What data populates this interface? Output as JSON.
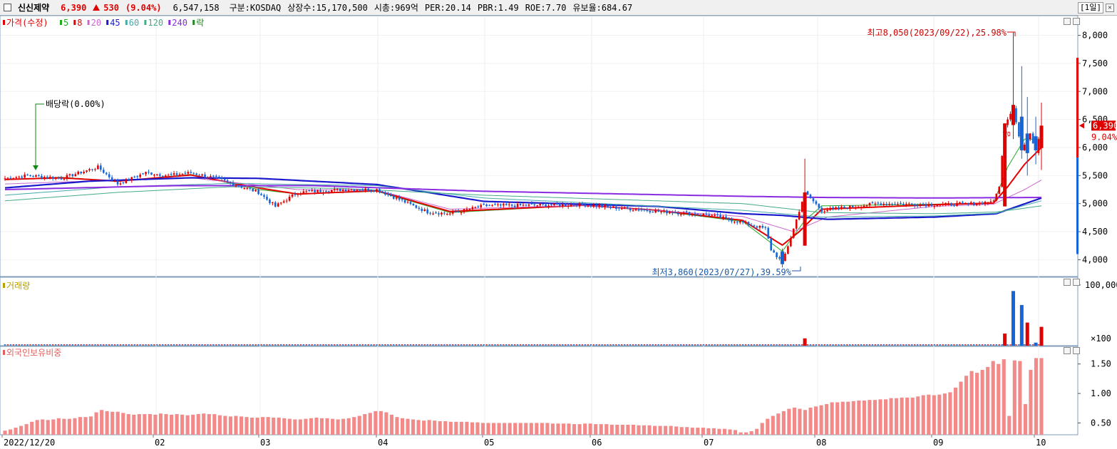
{
  "header": {
    "name": "신신제약",
    "price": "6,390",
    "change": "530",
    "change_pct": "(9.04%)",
    "volume": "6,547,158",
    "market": "구분:KOSDAQ",
    "shares": "상장수:15,170,500",
    "mktcap": "시총:969억",
    "per": "PER:20.14",
    "pbr": "PBR:1.49",
    "roe": "ROE:7.70",
    "float": "유보율:684.67",
    "period": "[1일]"
  },
  "legend": {
    "price_label": "가격(수정)",
    "ma": [
      {
        "label": "5",
        "color": "#22aa22"
      },
      {
        "label": "8",
        "color": "#e60000"
      },
      {
        "label": "20",
        "color": "#cc66cc"
      },
      {
        "label": "45",
        "color": "#1a1acc"
      },
      {
        "label": "60",
        "color": "#44aaaa"
      },
      {
        "label": "120",
        "color": "#44aa88"
      },
      {
        "label": "240",
        "color": "#8a2be2"
      }
    ],
    "ex_label": "락",
    "volume_label": "거래량",
    "foreign_label": "외국인보유비중"
  },
  "annotations": {
    "high": "최고8,050(2023/09/22),25.98%",
    "low": "최저3,860(2023/07/27),39.59%",
    "dividend": "배당락(0.00%)",
    "limit_up": "상"
  },
  "price_box": {
    "price": "6,390",
    "pct": "9.04%"
  },
  "chart_data": [
    {
      "type": "candlestick",
      "ylim": [
        3700,
        8350
      ],
      "yticks": [
        4000,
        4500,
        5000,
        5500,
        6000,
        6500,
        7000,
        7500,
        8000
      ],
      "ytick_labels": [
        "4,000",
        "4,500",
        "5,000",
        "5,500",
        "6,000",
        "6,500",
        "7,000",
        "7,500",
        "8,000"
      ],
      "xlabels": [
        "2022/12/20",
        "02",
        "03",
        "04",
        "05",
        "06",
        "07",
        "08",
        "09",
        "10"
      ],
      "anchors": [
        [
          0,
          5450
        ],
        [
          8,
          5500
        ],
        [
          20,
          5450
        ],
        [
          33,
          5650
        ],
        [
          40,
          5350
        ],
        [
          50,
          5550
        ],
        [
          58,
          5500
        ],
        [
          66,
          5550
        ],
        [
          75,
          5450
        ],
        [
          90,
          5200
        ],
        [
          96,
          4950
        ],
        [
          104,
          5200
        ],
        [
          120,
          5250
        ],
        [
          132,
          5250
        ],
        [
          150,
          4850
        ],
        [
          158,
          4820
        ],
        [
          170,
          4960
        ],
        [
          205,
          4980
        ],
        [
          232,
          4860
        ],
        [
          250,
          4800
        ],
        [
          262,
          4660
        ],
        [
          270,
          4550
        ],
        [
          272,
          4180
        ],
        [
          276,
          3950
        ],
        [
          280,
          4550
        ],
        [
          284,
          5200
        ],
        [
          290,
          4880
        ],
        [
          310,
          5000
        ],
        [
          330,
          4980
        ],
        [
          345,
          5000
        ],
        [
          351,
          5050
        ],
        [
          353,
          5300
        ],
        [
          355,
          6400
        ],
        [
          358,
          6700
        ],
        [
          361,
          5950
        ],
        [
          364,
          6250
        ],
        [
          366,
          5900
        ],
        [
          368,
          6390
        ]
      ],
      "ma_anchors": {
        "ma5": [
          [
            0,
            5430
          ],
          [
            20,
            5470
          ],
          [
            40,
            5400
          ],
          [
            66,
            5520
          ],
          [
            90,
            5250
          ],
          [
            104,
            5170
          ],
          [
            132,
            5220
          ],
          [
            158,
            4840
          ],
          [
            205,
            4970
          ],
          [
            232,
            4870
          ],
          [
            262,
            4680
          ],
          [
            276,
            4150
          ],
          [
            284,
            4700
          ],
          [
            290,
            4960
          ],
          [
            330,
            4990
          ],
          [
            351,
            5010
          ],
          [
            356,
            5650
          ],
          [
            362,
            6150
          ],
          [
            368,
            6150
          ]
        ],
        "ma8": [
          [
            0,
            5430
          ],
          [
            20,
            5460
          ],
          [
            40,
            5400
          ],
          [
            66,
            5510
          ],
          [
            90,
            5280
          ],
          [
            104,
            5170
          ],
          [
            132,
            5230
          ],
          [
            158,
            4860
          ],
          [
            205,
            4970
          ],
          [
            232,
            4880
          ],
          [
            262,
            4700
          ],
          [
            276,
            4260
          ],
          [
            282,
            4500
          ],
          [
            290,
            4900
          ],
          [
            330,
            4980
          ],
          [
            351,
            5010
          ],
          [
            356,
            5300
          ],
          [
            362,
            5700
          ],
          [
            368,
            6000
          ]
        ],
        "ma20": [
          [
            0,
            5350
          ],
          [
            40,
            5420
          ],
          [
            66,
            5460
          ],
          [
            104,
            5250
          ],
          [
            132,
            5240
          ],
          [
            158,
            4900
          ],
          [
            205,
            4970
          ],
          [
            262,
            4770
          ],
          [
            280,
            4500
          ],
          [
            292,
            4760
          ],
          [
            330,
            4950
          ],
          [
            351,
            4990
          ],
          [
            362,
            5250
          ],
          [
            368,
            5420
          ]
        ],
        "ma45": [
          [
            0,
            5280
          ],
          [
            30,
            5400
          ],
          [
            66,
            5460
          ],
          [
            90,
            5450
          ],
          [
            132,
            5340
          ],
          [
            150,
            5200
          ],
          [
            170,
            5040
          ],
          [
            232,
            4950
          ],
          [
            262,
            4820
          ],
          [
            276,
            4790
          ],
          [
            292,
            4720
          ],
          [
            330,
            4760
          ],
          [
            352,
            4820
          ],
          [
            368,
            5100
          ]
        ],
        "ma60": [
          [
            0,
            5150
          ],
          [
            40,
            5300
          ],
          [
            80,
            5360
          ],
          [
            132,
            5320
          ],
          [
            170,
            5100
          ],
          [
            262,
            4880
          ],
          [
            290,
            4760
          ],
          [
            330,
            4780
          ],
          [
            352,
            4830
          ],
          [
            368,
            5050
          ]
        ],
        "ma120": [
          [
            0,
            5050
          ],
          [
            40,
            5200
          ],
          [
            80,
            5300
          ],
          [
            120,
            5270
          ],
          [
            170,
            5150
          ],
          [
            262,
            5000
          ],
          [
            290,
            4840
          ],
          [
            330,
            4820
          ],
          [
            352,
            4850
          ],
          [
            368,
            4960
          ]
        ],
        "ma240": [
          [
            0,
            5250
          ],
          [
            60,
            5320
          ],
          [
            110,
            5320
          ],
          [
            170,
            5220
          ],
          [
            262,
            5130
          ],
          [
            290,
            5110
          ],
          [
            330,
            5100
          ],
          [
            368,
            5110
          ]
        ]
      }
    },
    {
      "type": "bar",
      "name": "volume",
      "ytick_labels": [
        "100,000",
        "×100"
      ],
      "spikes": [
        {
          "index": 284,
          "value": 12000,
          "color": "red"
        },
        {
          "index": 355,
          "value": 20000,
          "color": "red"
        },
        {
          "index": 358,
          "value": 90000,
          "color": "blue"
        },
        {
          "index": 361,
          "value": 67000,
          "color": "blue"
        },
        {
          "index": 363,
          "value": 38000,
          "color": "red"
        },
        {
          "index": 366,
          "value": 5000,
          "color": "blue"
        },
        {
          "index": 368,
          "value": 31000,
          "color": "red"
        }
      ]
    },
    {
      "type": "bar",
      "name": "foreign_ownership_pct",
      "ylim": [
        0.3,
        1.75
      ],
      "yticks": [
        0.5,
        1.0,
        1.5
      ],
      "ytick_labels": [
        "0.50",
        "1.00",
        "1.50"
      ],
      "values": [
        0.37,
        0.39,
        0.42,
        0.45,
        0.48,
        0.52,
        0.55,
        0.56,
        0.55,
        0.56,
        0.58,
        0.57,
        0.57,
        0.58,
        0.6,
        0.6,
        0.61,
        0.68,
        0.72,
        0.7,
        0.69,
        0.69,
        0.67,
        0.65,
        0.64,
        0.65,
        0.65,
        0.65,
        0.64,
        0.66,
        0.65,
        0.64,
        0.65,
        0.64,
        0.63,
        0.64,
        0.65,
        0.66,
        0.65,
        0.65,
        0.63,
        0.62,
        0.61,
        0.62,
        0.61,
        0.6,
        0.59,
        0.59,
        0.6,
        0.6,
        0.59,
        0.59,
        0.58,
        0.57,
        0.56,
        0.56,
        0.57,
        0.58,
        0.59,
        0.58,
        0.58,
        0.57,
        0.56,
        0.57,
        0.58,
        0.6,
        0.62,
        0.65,
        0.67,
        0.7,
        0.7,
        0.68,
        0.64,
        0.6,
        0.58,
        0.57,
        0.56,
        0.55,
        0.54,
        0.55,
        0.54,
        0.53,
        0.53,
        0.52,
        0.52,
        0.52,
        0.52,
        0.51,
        0.51,
        0.5,
        0.5,
        0.5,
        0.5,
        0.5,
        0.5,
        0.5,
        0.5,
        0.5,
        0.5,
        0.5,
        0.5,
        0.5,
        0.49,
        0.49,
        0.49,
        0.49,
        0.48,
        0.48,
        0.49,
        0.49,
        0.48,
        0.48,
        0.48,
        0.47,
        0.47,
        0.47,
        0.47,
        0.47,
        0.46,
        0.46,
        0.46,
        0.45,
        0.45,
        0.45,
        0.45,
        0.44,
        0.43,
        0.43,
        0.42,
        0.42,
        0.42,
        0.41,
        0.41,
        0.4,
        0.4,
        0.39,
        0.38,
        0.34,
        0.34,
        0.36,
        0.4,
        0.5,
        0.57,
        0.62,
        0.66,
        0.7,
        0.74,
        0.76,
        0.74,
        0.72,
        0.76,
        0.78,
        0.8,
        0.82,
        0.85,
        0.85,
        0.86,
        0.86,
        0.87,
        0.88,
        0.88,
        0.89,
        0.89,
        0.9,
        0.9,
        0.92,
        0.92,
        0.93,
        0.93,
        0.93,
        0.95,
        0.97,
        0.98,
        0.97,
        0.98,
        1.0,
        1.02,
        1.1,
        1.2,
        1.3,
        1.38,
        1.35,
        1.4,
        1.45,
        1.55,
        1.5,
        1.58,
        0.62,
        1.56,
        1.55,
        0.82,
        1.4,
        1.6,
        1.6
      ]
    }
  ]
}
